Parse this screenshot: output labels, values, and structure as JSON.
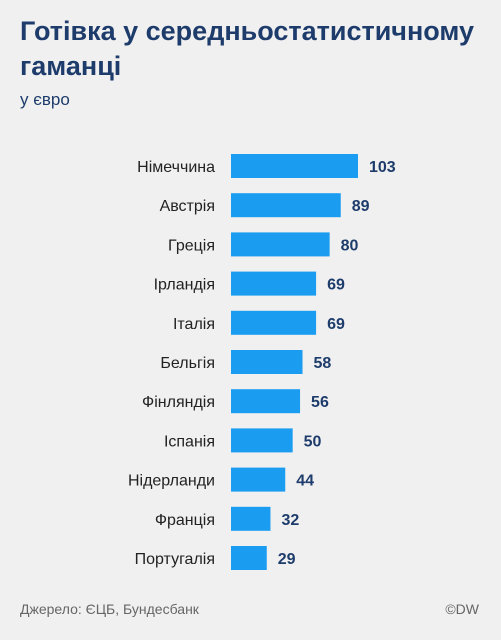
{
  "header": {
    "title": "Готівка у середньостатистичному гаманці",
    "subtitle": "у євро"
  },
  "footer": {
    "source": "Джерело: ЄЦБ, Бундесбанк",
    "credit": "©DW"
  },
  "chart_data": {
    "type": "bar",
    "orientation": "horizontal",
    "title": "Готівка у середньостатистичному гаманці",
    "subtitle": "у євро",
    "categories": [
      "Німеччина",
      "Австрія",
      "Греція",
      "Ірландія",
      "Італія",
      "Бельгія",
      "Фінляндія",
      "Іспанія",
      "Нідерланди",
      "Франція",
      "Португалія"
    ],
    "values": [
      103,
      89,
      80,
      69,
      69,
      58,
      56,
      50,
      44,
      32,
      29
    ],
    "bar_color": "#1a9cf0",
    "value_label_color": "#1d3c6b",
    "grid": false,
    "legend": "none"
  }
}
